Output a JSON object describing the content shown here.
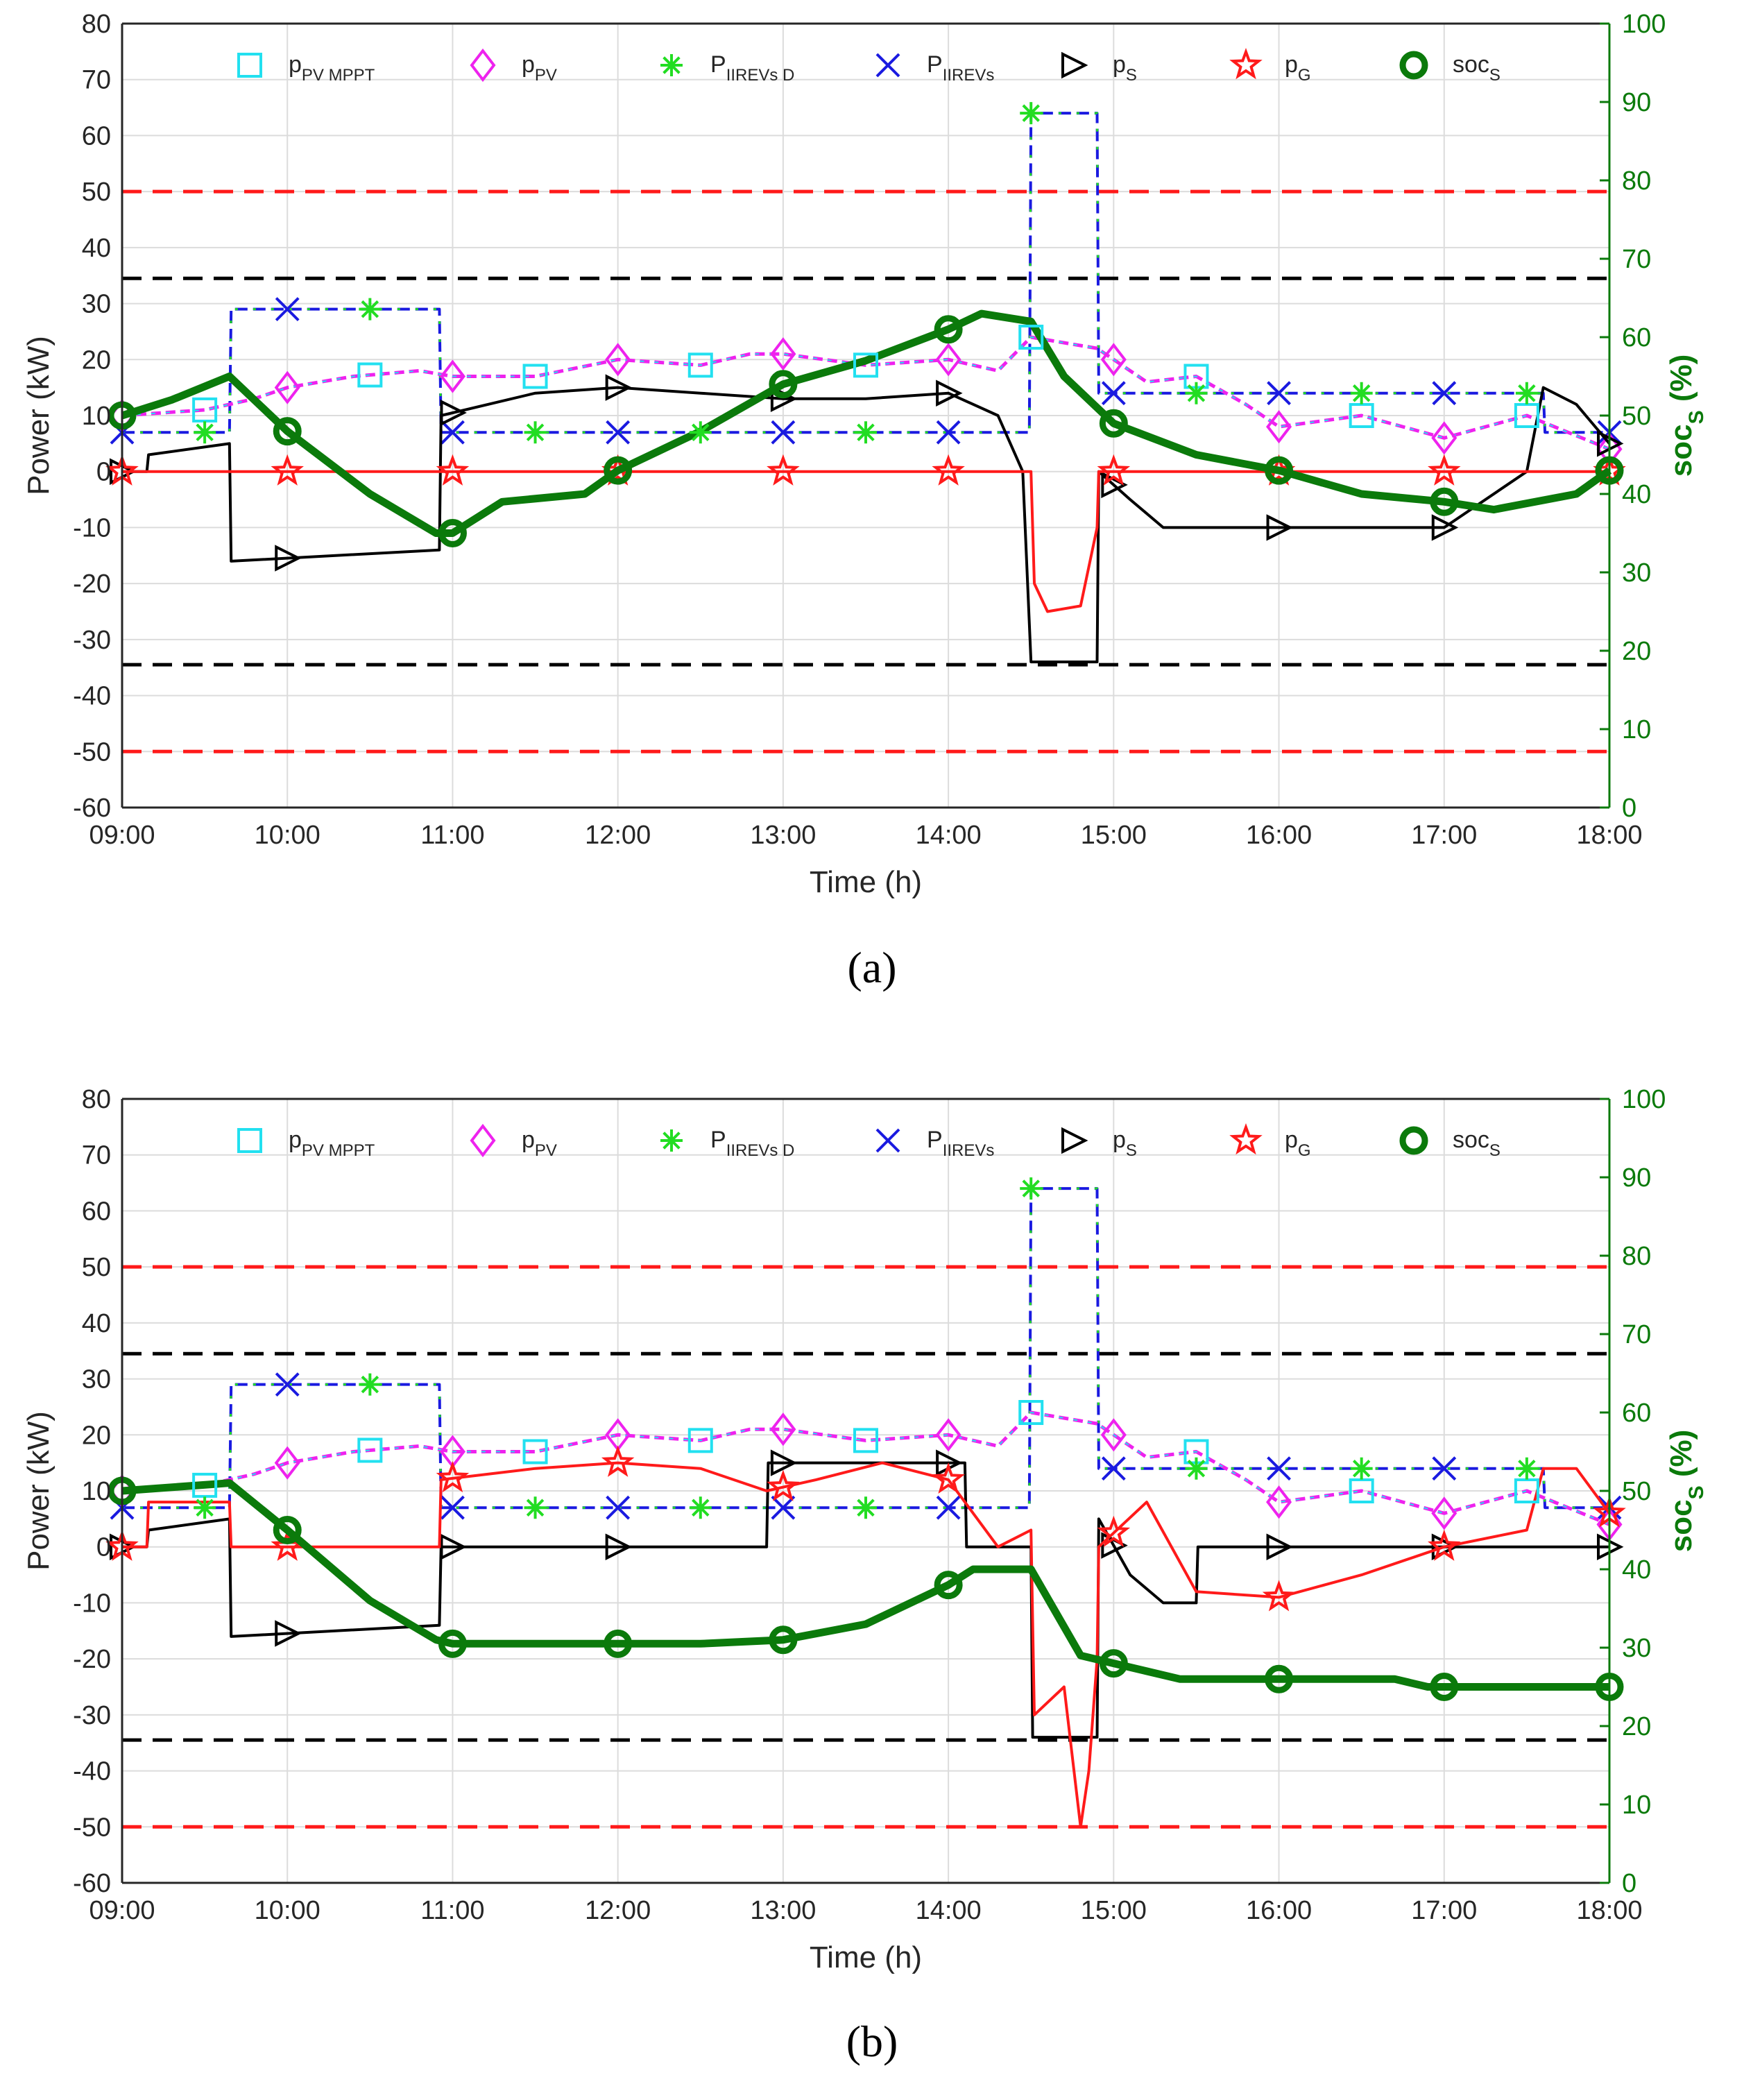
{
  "chart_data": [
    {
      "type": "line",
      "panel_label": "(a)",
      "xlabel": "Time (h)",
      "ylabel": "Power (kW)",
      "y2label": "soc",
      "y2label_sub": "S",
      "y2label_unit": " (%)",
      "x_ticks": [
        "09:00",
        "10:00",
        "11:00",
        "12:00",
        "13:00",
        "14:00",
        "15:00",
        "16:00",
        "17:00",
        "18:00"
      ],
      "xlim": [
        9,
        18
      ],
      "ylim": [
        -60,
        80
      ],
      "y_ticks": [
        80,
        70,
        60,
        50,
        40,
        30,
        20,
        10,
        0,
        -10,
        -20,
        -30,
        -40,
        -50,
        -60
      ],
      "y2lim": [
        0,
        100
      ],
      "y2_ticks": [
        100,
        90,
        80,
        70,
        60,
        50,
        40,
        30,
        20,
        10,
        0
      ],
      "grid": true,
      "legend": [
        {
          "main": "p",
          "sub": "PV MPPT",
          "color": "#22e0f0",
          "marker": "square"
        },
        {
          "main": "p",
          "sub": "PV",
          "color": "#ee22ee",
          "marker": "diamond"
        },
        {
          "main": "P",
          "sub": "IIREVs D",
          "color": "#22dd22",
          "marker": "asterisk"
        },
        {
          "main": "P",
          "sub": "IIREVs",
          "color": "#1a1ae0",
          "marker": "x"
        },
        {
          "main": "p",
          "sub": "S",
          "color": "#000000",
          "marker": "triangle-right"
        },
        {
          "main": "p",
          "sub": "G",
          "color": "#ff1a1a",
          "marker": "star"
        },
        {
          "main": "soc",
          "sub": "S",
          "color": "#0b7a0b",
          "marker": "circle"
        }
      ],
      "limits": [
        {
          "name": "grid-limit",
          "values": [
            50,
            -50
          ],
          "color": "#ff1a1a"
        },
        {
          "name": "storage-limit",
          "values": [
            34.5,
            -34.5
          ],
          "color": "#000000"
        }
      ],
      "series": [
        {
          "name": "P_IIREVs",
          "color": "#1a1ae0",
          "x": [
            9,
            9.65,
            9.66,
            10.92,
            10.93,
            14.49,
            14.5,
            14.9,
            14.91,
            17.6,
            17.61,
            18
          ],
          "y": [
            7,
            7,
            29,
            29,
            7,
            7,
            64,
            64,
            14,
            14,
            7,
            7
          ]
        },
        {
          "name": "p_PV",
          "color": "#ee22ee",
          "x": [
            9,
            9.5,
            9.8,
            10,
            10.4,
            10.8,
            11,
            11.5,
            12,
            12.5,
            12.8,
            13,
            13.5,
            14,
            14.3,
            14.5,
            14.9,
            15.2,
            15.5,
            15.8,
            16,
            16.5,
            17,
            17.5,
            18
          ],
          "y": [
            10,
            11,
            13,
            15,
            17,
            18,
            17,
            17,
            20,
            19,
            21,
            21,
            19,
            20,
            18,
            24,
            22,
            16,
            17,
            12,
            8,
            10,
            6,
            10,
            4
          ]
        },
        {
          "name": "p_S",
          "color": "#000000",
          "x": [
            9,
            9.15,
            9.16,
            9.65,
            9.66,
            10.92,
            10.93,
            11.5,
            12,
            12.5,
            13,
            13.5,
            14,
            14.3,
            14.45,
            14.5,
            14.51,
            14.9,
            14.91,
            15.1,
            15.3,
            15.6,
            16,
            16.5,
            17,
            17.5,
            17.6,
            17.8,
            18
          ],
          "y": [
            0,
            0,
            3,
            5,
            -16,
            -14,
            10,
            14,
            15,
            14,
            13,
            13,
            14,
            10,
            0,
            -34,
            -34,
            -34,
            0,
            -5,
            -10,
            -10,
            -10,
            -10,
            -10,
            0,
            15,
            12,
            5
          ]
        },
        {
          "name": "p_G",
          "color": "#ff1a1a",
          "x": [
            9,
            14.5,
            14.52,
            14.6,
            14.8,
            14.9,
            14.91,
            18
          ],
          "y": [
            0,
            0,
            -20,
            -25,
            -24,
            -10,
            0,
            0
          ]
        },
        {
          "name": "soc_S",
          "axis": "right",
          "color": "#0b7a0b",
          "x": [
            9,
            9.3,
            9.65,
            10,
            10.5,
            10.9,
            11,
            11.3,
            11.8,
            12,
            12.5,
            13,
            13.5,
            14,
            14.2,
            14.5,
            14.7,
            15,
            15.5,
            16,
            16.5,
            17,
            17.3,
            17.8,
            18
          ],
          "y": [
            50,
            52,
            55,
            48,
            40,
            35,
            35,
            39,
            40,
            43,
            48,
            54,
            57,
            61,
            63,
            62,
            55,
            49,
            45,
            43,
            40,
            39,
            38,
            40,
            43
          ]
        }
      ]
    },
    {
      "type": "line",
      "panel_label": "(b)",
      "xlabel": "Time (h)",
      "ylabel": "Power (kW)",
      "y2label": "soc",
      "y2label_sub": "S",
      "y2label_unit": " (%)",
      "x_ticks": [
        "09:00",
        "10:00",
        "11:00",
        "12:00",
        "13:00",
        "14:00",
        "15:00",
        "16:00",
        "17:00",
        "18:00"
      ],
      "xlim": [
        9,
        18
      ],
      "ylim": [
        -60,
        80
      ],
      "y_ticks": [
        80,
        70,
        60,
        50,
        40,
        30,
        20,
        10,
        0,
        -10,
        -20,
        -30,
        -40,
        -50,
        -60
      ],
      "y2lim": [
        0,
        100
      ],
      "y2_ticks": [
        100,
        90,
        80,
        70,
        60,
        50,
        40,
        30,
        20,
        10,
        0
      ],
      "grid": true,
      "legend": [
        {
          "main": "p",
          "sub": "PV MPPT",
          "color": "#22e0f0",
          "marker": "square"
        },
        {
          "main": "p",
          "sub": "PV",
          "color": "#ee22ee",
          "marker": "diamond"
        },
        {
          "main": "P",
          "sub": "IIREVs D",
          "color": "#22dd22",
          "marker": "asterisk"
        },
        {
          "main": "P",
          "sub": "IIREVs",
          "color": "#1a1ae0",
          "marker": "x"
        },
        {
          "main": "p",
          "sub": "S",
          "color": "#000000",
          "marker": "triangle-right"
        },
        {
          "main": "p",
          "sub": "G",
          "color": "#ff1a1a",
          "marker": "star"
        },
        {
          "main": "soc",
          "sub": "S",
          "color": "#0b7a0b",
          "marker": "circle"
        }
      ],
      "limits": [
        {
          "name": "grid-limit",
          "values": [
            50,
            -50
          ],
          "color": "#ff1a1a"
        },
        {
          "name": "storage-limit",
          "values": [
            34.5,
            -34.5
          ],
          "color": "#000000"
        }
      ],
      "series": [
        {
          "name": "P_IIREVs",
          "color": "#1a1ae0",
          "x": [
            9,
            9.65,
            9.66,
            10.92,
            10.93,
            14.49,
            14.5,
            14.9,
            14.91,
            17.6,
            17.61,
            18
          ],
          "y": [
            7,
            7,
            29,
            29,
            7,
            7,
            64,
            64,
            14,
            14,
            7,
            7
          ]
        },
        {
          "name": "p_PV",
          "color": "#ee22ee",
          "x": [
            9,
            9.5,
            9.8,
            10,
            10.4,
            10.8,
            11,
            11.5,
            12,
            12.5,
            12.8,
            13,
            13.5,
            14,
            14.3,
            14.5,
            14.9,
            15.2,
            15.5,
            15.8,
            16,
            16.5,
            17,
            17.5,
            18
          ],
          "y": [
            10,
            11,
            13,
            15,
            17,
            18,
            17,
            17,
            20,
            19,
            21,
            21,
            19,
            20,
            18,
            24,
            22,
            16,
            17,
            12,
            8,
            10,
            6,
            10,
            4
          ]
        },
        {
          "name": "p_S",
          "color": "#000000",
          "x": [
            9,
            9.15,
            9.16,
            9.65,
            9.66,
            10.92,
            10.93,
            12.9,
            12.91,
            14.1,
            14.11,
            14.5,
            14.51,
            14.9,
            14.91,
            15.1,
            15.3,
            15.5,
            15.51,
            18
          ],
          "y": [
            0,
            0,
            3,
            5,
            -16,
            -14,
            0,
            0,
            15,
            15,
            0,
            0,
            -34,
            -34,
            5,
            -5,
            -10,
            -10,
            0,
            0
          ]
        },
        {
          "name": "p_G",
          "color": "#ff1a1a",
          "x": [
            9,
            9.15,
            9.16,
            9.65,
            9.66,
            10.92,
            10.93,
            11.5,
            12,
            12.5,
            12.9,
            13.2,
            13.6,
            14,
            14.3,
            14.5,
            14.52,
            14.7,
            14.8,
            14.85,
            14.9,
            14.91,
            15.2,
            15.5,
            16,
            16.5,
            17,
            17.5,
            17.6,
            17.8,
            18
          ],
          "y": [
            0,
            0,
            8,
            8,
            0,
            0,
            12,
            14,
            15,
            14,
            10,
            12,
            15,
            12,
            0,
            3,
            -30,
            -25,
            -50,
            -40,
            -20,
            0,
            8,
            -8,
            -9,
            -5,
            0,
            3,
            14,
            14,
            6
          ]
        },
        {
          "name": "soc_S",
          "axis": "right",
          "color": "#0b7a0b",
          "x": [
            9,
            9.65,
            10,
            10.5,
            10.9,
            11,
            11.5,
            12,
            12.5,
            13,
            13.5,
            14,
            14.15,
            14.5,
            14.8,
            15,
            15.4,
            16,
            16.7,
            16.9,
            17,
            17.5,
            18
          ],
          "y": [
            50,
            51,
            45,
            36,
            31,
            30.5,
            30.5,
            30.5,
            30.5,
            31,
            33,
            38,
            40,
            40,
            29,
            28,
            26,
            26,
            26,
            25,
            25,
            25,
            25
          ]
        }
      ]
    }
  ]
}
